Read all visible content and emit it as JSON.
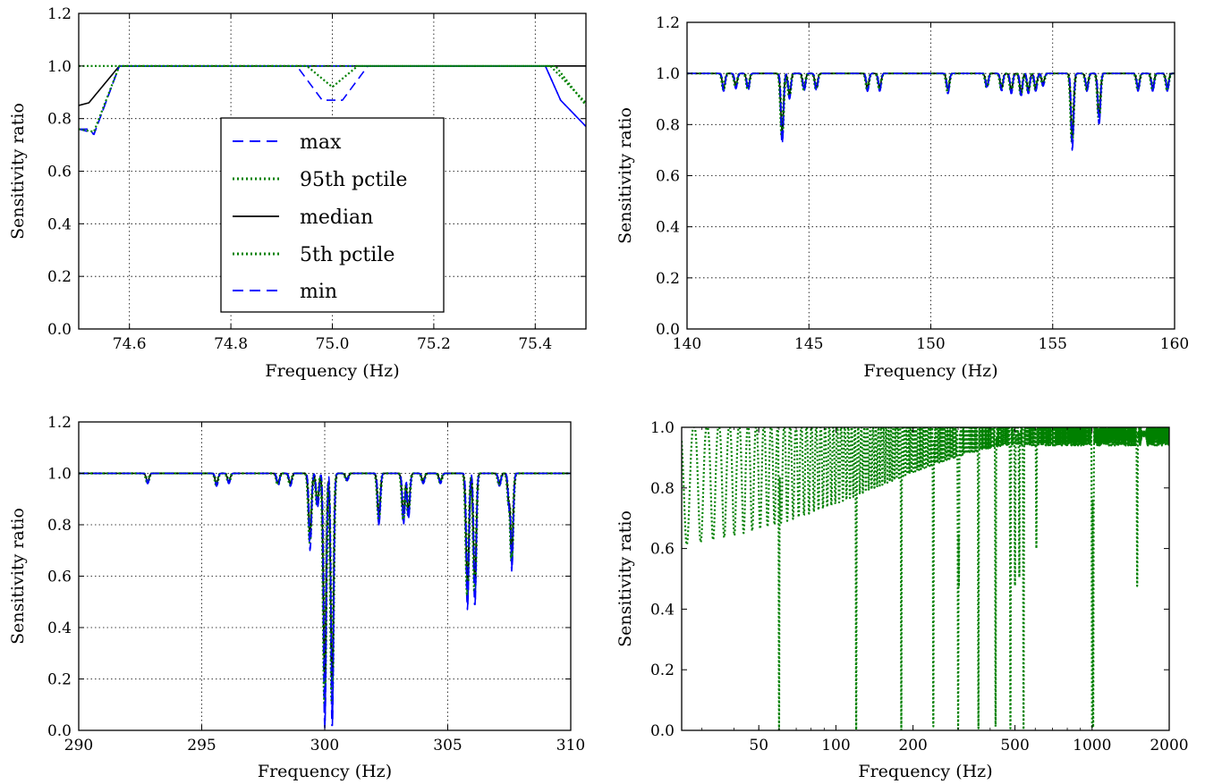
{
  "colors": {
    "max": "#0000ff",
    "p95": "#008000",
    "median": "#000000",
    "p5": "#008000",
    "min": "#0000ff"
  },
  "chart_data": [
    {
      "type": "line",
      "xlabel": "Frequency (Hz)",
      "ylabel": "Sensitivity ratio",
      "xlim": [
        74.5,
        75.5
      ],
      "ylim": [
        0.0,
        1.2
      ],
      "xscale": "linear",
      "grid": true,
      "legend": "center-left",
      "xticks": [
        74.6,
        74.8,
        75.0,
        75.2,
        75.4
      ],
      "xtick_labels": [
        "74.6",
        "74.8",
        "75.0",
        "75.2",
        "75.4"
      ],
      "yticks": [
        0.0,
        0.2,
        0.4,
        0.6,
        0.8,
        1.0,
        1.2
      ],
      "ytick_labels": [
        "0.0",
        "0.2",
        "0.4",
        "0.6",
        "0.8",
        "1.0",
        "1.2"
      ],
      "series": [
        {
          "name": "max",
          "style": "dashed",
          "color": "#0000ff",
          "x": [
            74.5,
            74.52,
            74.53,
            74.58,
            74.93,
            74.98,
            75.02,
            75.07,
            75.42,
            75.45,
            75.5
          ],
          "y": [
            0.76,
            0.76,
            0.74,
            1.0,
            1.0,
            0.87,
            0.87,
            1.0,
            1.0,
            0.87,
            0.77
          ]
        },
        {
          "name": "95th pctile",
          "style": "dotted",
          "color": "#008000",
          "x": [
            74.5,
            74.55,
            74.58,
            74.95,
            75.0,
            75.05,
            75.43,
            75.5
          ],
          "y": [
            1.0,
            1.0,
            1.0,
            1.0,
            0.92,
            1.0,
            1.0,
            0.86
          ]
        },
        {
          "name": "median",
          "style": "solid",
          "color": "#000000",
          "x": [
            74.5,
            74.52,
            74.58,
            75.5
          ],
          "y": [
            0.85,
            0.86,
            1.0,
            1.0
          ]
        },
        {
          "name": "5th pctile",
          "style": "dotted",
          "color": "#008000",
          "x": [
            74.5,
            74.53,
            74.58,
            75.44,
            75.5
          ],
          "y": [
            0.76,
            0.75,
            1.0,
            1.0,
            0.85
          ]
        },
        {
          "name": "min",
          "style": "dashed",
          "color": "#0000ff",
          "x": [
            74.5,
            74.52,
            74.53,
            74.58,
            75.42,
            75.45,
            75.5
          ],
          "y": [
            0.76,
            0.75,
            0.74,
            1.0,
            1.0,
            0.87,
            0.77
          ]
        }
      ]
    },
    {
      "type": "line",
      "xlabel": "Frequency (Hz)",
      "ylabel": "Sensitivity ratio",
      "xlim": [
        140,
        160
      ],
      "ylim": [
        0.0,
        1.2
      ],
      "xscale": "linear",
      "grid": true,
      "xticks": [
        140,
        145,
        150,
        155,
        160
      ],
      "xtick_labels": [
        "140",
        "145",
        "150",
        "155",
        "160"
      ],
      "yticks": [
        0.0,
        0.2,
        0.4,
        0.6,
        0.8,
        1.0,
        1.2
      ],
      "ytick_labels": [
        "0.0",
        "0.2",
        "0.4",
        "0.6",
        "0.8",
        "1.0",
        "1.2"
      ],
      "dips": [
        [
          141.5,
          0.93
        ],
        [
          142.0,
          0.94
        ],
        [
          142.5,
          0.93
        ],
        [
          143.9,
          0.72
        ],
        [
          144.2,
          0.9
        ],
        [
          144.8,
          0.93
        ],
        [
          145.3,
          0.93
        ],
        [
          147.4,
          0.93
        ],
        [
          147.9,
          0.93
        ],
        [
          150.7,
          0.92
        ],
        [
          152.3,
          0.94
        ],
        [
          152.9,
          0.93
        ],
        [
          153.3,
          0.92
        ],
        [
          153.7,
          0.91
        ],
        [
          154.0,
          0.92
        ],
        [
          154.3,
          0.93
        ],
        [
          154.6,
          0.95
        ],
        [
          155.8,
          0.7
        ],
        [
          156.4,
          0.93
        ],
        [
          156.9,
          0.8
        ],
        [
          158.5,
          0.93
        ],
        [
          159.1,
          0.93
        ],
        [
          159.7,
          0.93
        ]
      ]
    },
    {
      "type": "line",
      "xlabel": "Frequency (Hz)",
      "ylabel": "Sensitivity ratio",
      "xlim": [
        290,
        310
      ],
      "ylim": [
        0.0,
        1.2
      ],
      "xscale": "linear",
      "grid": true,
      "xticks": [
        290,
        295,
        300,
        305,
        310
      ],
      "xtick_labels": [
        "290",
        "295",
        "300",
        "305",
        "310"
      ],
      "yticks": [
        0.0,
        0.2,
        0.4,
        0.6,
        0.8,
        1.0,
        1.2
      ],
      "ytick_labels": [
        "0.0",
        "0.2",
        "0.4",
        "0.6",
        "0.8",
        "1.0",
        "1.2"
      ],
      "dips": [
        [
          292.8,
          0.96
        ],
        [
          295.6,
          0.95
        ],
        [
          296.1,
          0.96
        ],
        [
          298.1,
          0.95
        ],
        [
          298.6,
          0.95
        ],
        [
          299.4,
          0.7
        ],
        [
          299.7,
          0.86
        ],
        [
          300.0,
          0.0
        ],
        [
          300.3,
          0.0
        ],
        [
          300.9,
          0.97
        ],
        [
          302.2,
          0.8
        ],
        [
          303.2,
          0.8
        ],
        [
          303.4,
          0.82
        ],
        [
          304.0,
          0.96
        ],
        [
          304.7,
          0.96
        ],
        [
          305.8,
          0.47
        ],
        [
          306.1,
          0.48
        ],
        [
          307.1,
          0.95
        ],
        [
          307.6,
          0.62
        ],
        [
          307.5,
          0.85
        ]
      ]
    },
    {
      "type": "line",
      "xlabel": "Frequency (Hz)",
      "ylabel": "Sensitivity ratio",
      "xlim": [
        25,
        2000
      ],
      "ylim": [
        0.0,
        1.0
      ],
      "xscale": "log",
      "grid": false,
      "xticks": [
        50,
        100,
        200,
        500,
        1000,
        2000
      ],
      "xtick_labels": [
        "50",
        "100",
        "200",
        "500",
        "1000",
        "2000"
      ],
      "yticks": [
        0.0,
        0.2,
        0.4,
        0.6,
        0.8,
        1.0
      ],
      "ytick_labels": [
        "0.0",
        "0.2",
        "0.4",
        "0.6",
        "0.8",
        "1.0"
      ],
      "deep_dips": [
        [
          60,
          0.0
        ],
        [
          120,
          0.0
        ],
        [
          180,
          0.0
        ],
        [
          240,
          0.0
        ],
        [
          300,
          0.0
        ],
        [
          360,
          0.0
        ],
        [
          420,
          0.0
        ],
        [
          480,
          0.0
        ],
        [
          540,
          0.0
        ],
        [
          1000,
          0.0
        ],
        [
          1010,
          0.0
        ],
        [
          1500,
          0.47
        ],
        [
          302,
          0.47
        ],
        [
          606,
          0.6
        ],
        [
          500,
          0.47
        ],
        [
          520,
          0.5
        ]
      ]
    }
  ]
}
